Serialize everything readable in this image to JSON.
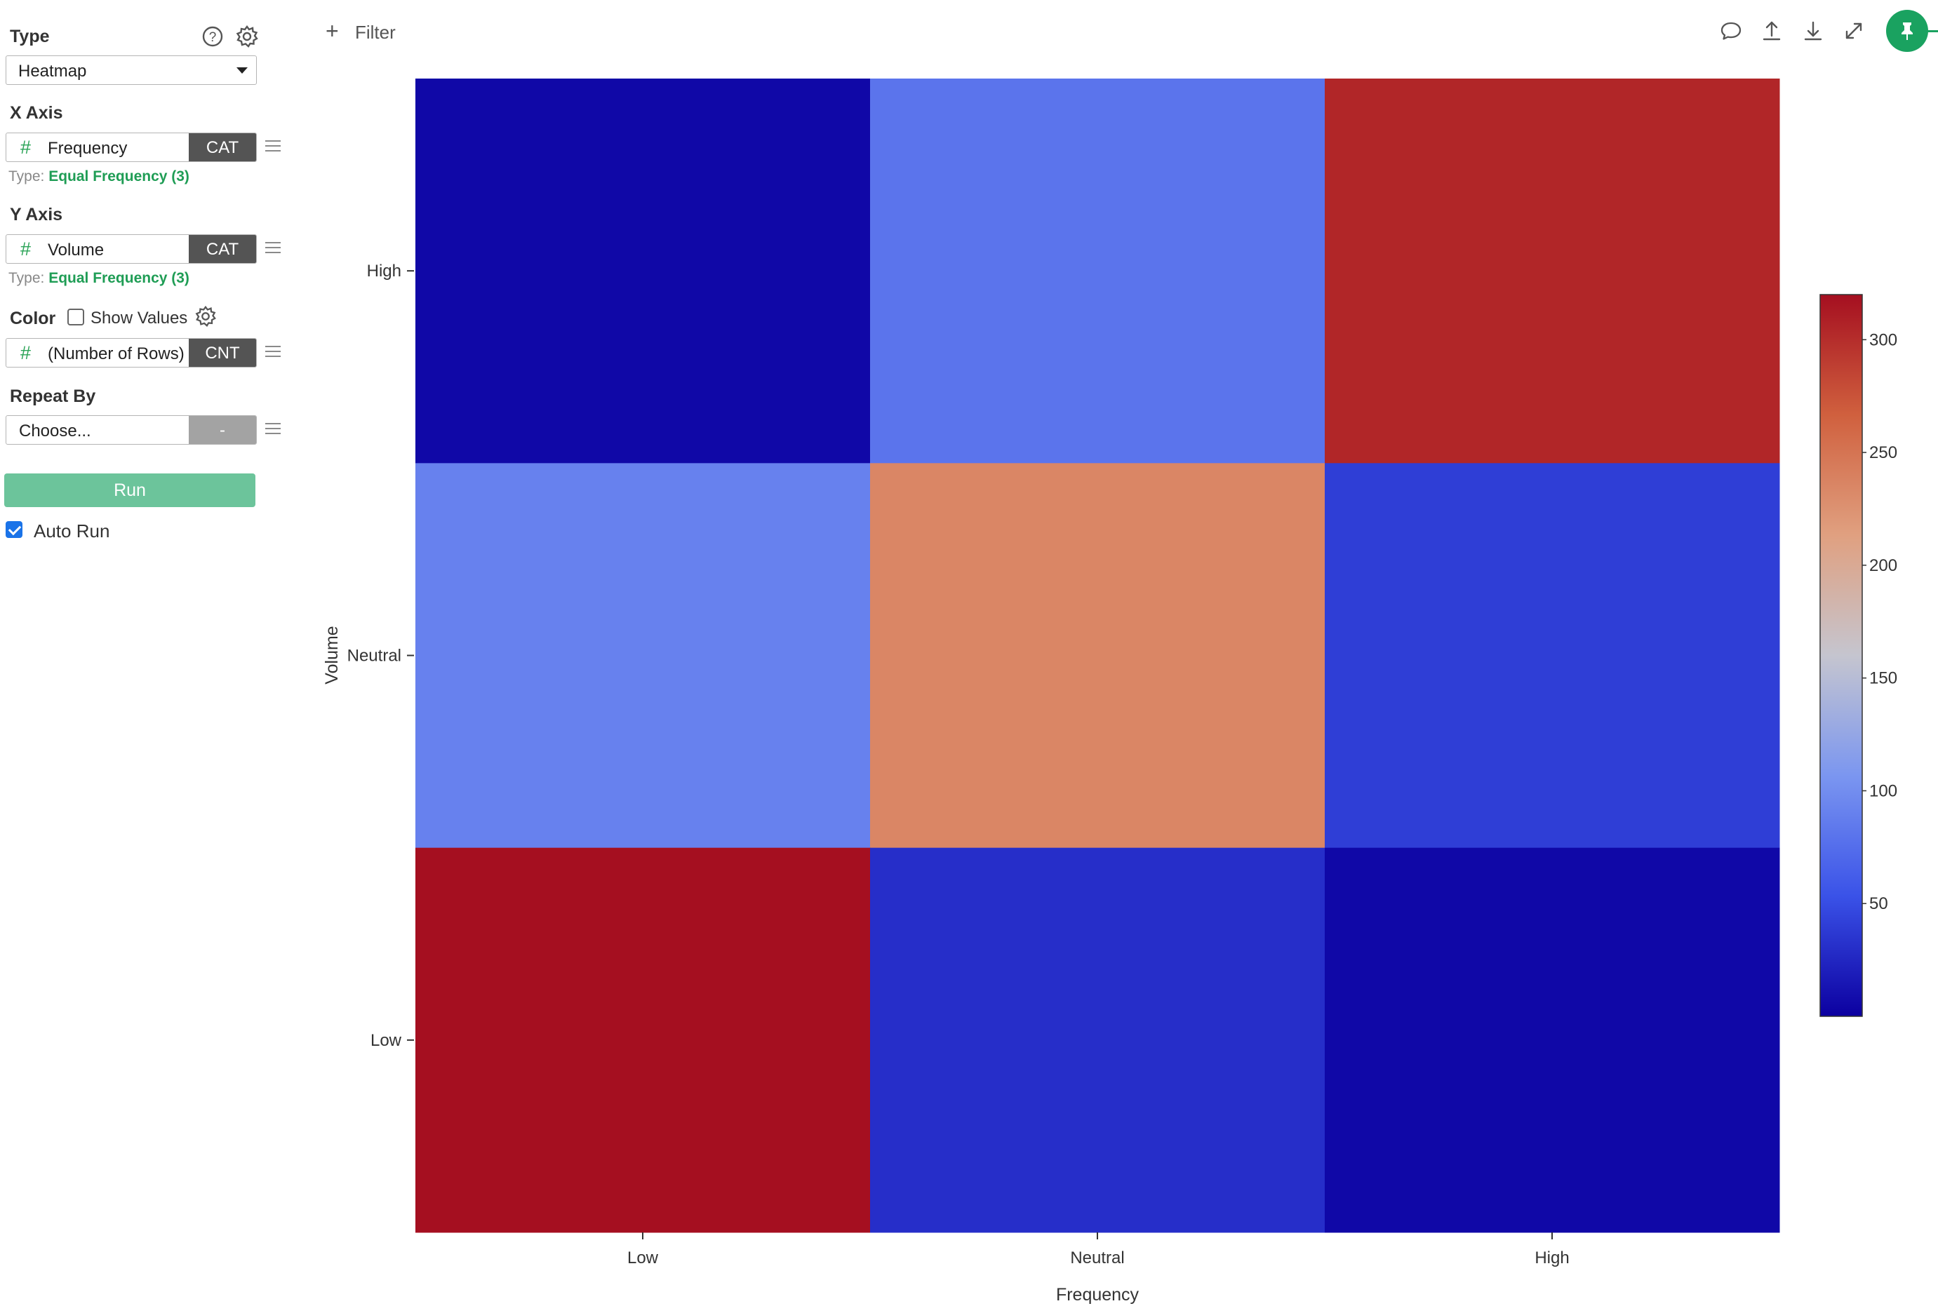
{
  "panel": {
    "type": {
      "title": "Type",
      "value": "Heatmap"
    },
    "x_axis": {
      "title": "X Axis",
      "column": "Frequency",
      "tag": "CAT",
      "type_prefix": "Type:",
      "type_value": "Equal Frequency (3)"
    },
    "y_axis": {
      "title": "Y Axis",
      "column": "Volume",
      "tag": "CAT",
      "type_prefix": "Type:",
      "type_value": "Equal Frequency (3)"
    },
    "color": {
      "title": "Color",
      "show_values_label": "Show Values",
      "show_values_checked": false,
      "column": "(Number of Rows)",
      "tag": "CNT"
    },
    "repeat_by": {
      "title": "Repeat By",
      "placeholder": "Choose...",
      "tag": "-"
    },
    "run_label": "Run",
    "auto_run_label": "Auto Run",
    "auto_run_checked": true
  },
  "toolbar": {
    "filter_plus": "+",
    "filter_label": "Filter",
    "icons": [
      "comment-icon",
      "upload-icon",
      "download-icon",
      "expand-icon",
      "pin-icon"
    ],
    "accent_color": "#1aa260"
  },
  "chart_data": {
    "type": "heatmap",
    "xlabel": "Frequency",
    "ylabel": "Volume",
    "x_categories": [
      "Low",
      "Neutral",
      "High"
    ],
    "y_categories": [
      "High",
      "Neutral",
      "Low"
    ],
    "values": [
      [
        5,
        80,
        305
      ],
      [
        90,
        235,
        40
      ],
      [
        320,
        30,
        5
      ]
    ],
    "colorbar": {
      "range": [
        0,
        320
      ],
      "ticks": [
        50,
        100,
        150,
        200,
        250,
        300
      ],
      "colormap": [
        "#0c00a0",
        "#3a52e8",
        "#7b96f0",
        "#c5c5cf",
        "#e0a080",
        "#d0603e",
        "#a50f20"
      ]
    }
  }
}
